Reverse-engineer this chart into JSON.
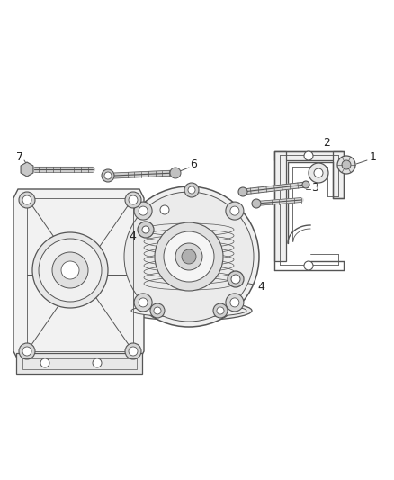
{
  "bg_color": "#ffffff",
  "line_color": "#555555",
  "label_color": "#222222",
  "fig_width": 4.38,
  "fig_height": 5.33,
  "dpi": 100
}
